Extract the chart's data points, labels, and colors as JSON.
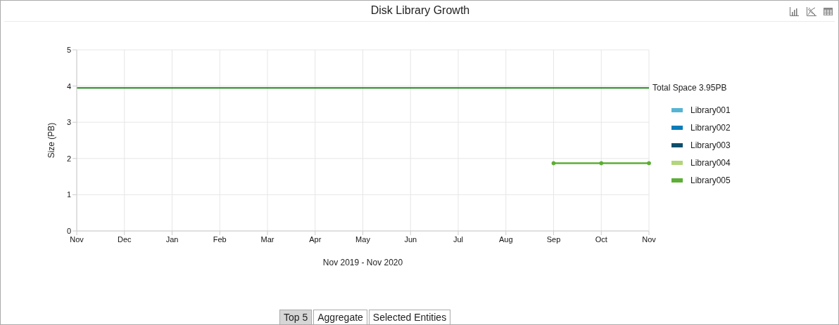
{
  "chart_data": {
    "type": "line",
    "title": "Disk Library Growth",
    "xlabel": "Nov 2019 - Nov 2020",
    "ylabel": "Size (PB)",
    "categories": [
      "Nov",
      "Dec",
      "Jan",
      "Feb",
      "Mar",
      "Apr",
      "May",
      "Jun",
      "Jul",
      "Aug",
      "Sep",
      "Oct",
      "Nov"
    ],
    "series": [
      {
        "name": "Library001",
        "color": "#56b4d3",
        "values": [
          null,
          null,
          null,
          null,
          null,
          null,
          null,
          null,
          null,
          null,
          null,
          null,
          null
        ]
      },
      {
        "name": "Library002",
        "color": "#0a7cb8",
        "values": [
          null,
          null,
          null,
          null,
          null,
          null,
          null,
          null,
          null,
          null,
          null,
          null,
          null
        ]
      },
      {
        "name": "Library003",
        "color": "#0c4f6b",
        "values": [
          null,
          null,
          null,
          null,
          null,
          null,
          null,
          null,
          null,
          null,
          null,
          null,
          null
        ]
      },
      {
        "name": "Library004",
        "color": "#b3d57b",
        "values": [
          null,
          null,
          null,
          null,
          null,
          null,
          null,
          null,
          null,
          null,
          null,
          null,
          null
        ]
      },
      {
        "name": "Library005",
        "color": "#5cae34",
        "values": [
          null,
          null,
          null,
          null,
          null,
          null,
          null,
          null,
          null,
          null,
          1.87,
          1.87,
          1.87
        ]
      }
    ],
    "ylim": [
      0,
      5
    ],
    "yticks": [
      0,
      1,
      2,
      3,
      4,
      5
    ],
    "grid": true,
    "legend": "right",
    "marker": "circle",
    "line_style": "solid",
    "ref_lines": [
      {
        "axis": "y",
        "value": 3.95,
        "label": "Total Space 3.95PB",
        "color": "#1f8a1f"
      }
    ],
    "annotations": [
      "Top 5",
      "Aggregate",
      "Selected Entities"
    ]
  }
}
